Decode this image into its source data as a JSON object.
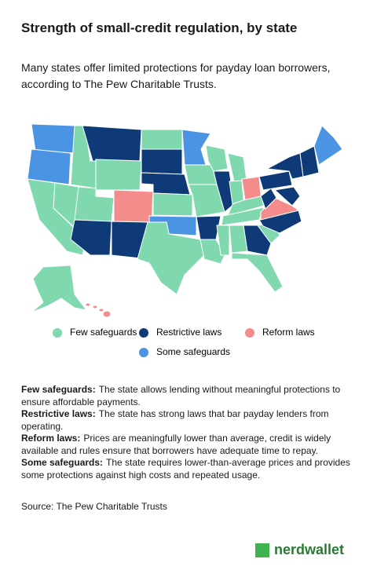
{
  "title": "Strength of small-credit regulation, by state",
  "subtitle": "Many states offer limited protections for payday loan borrowers, according to The Pew Charitable Trusts.",
  "legend": [
    {
      "label": "Few safeguards",
      "color": "#7fd8ae"
    },
    {
      "label": "Restrictive laws",
      "color": "#0e3a78"
    },
    {
      "label": "Reform laws",
      "color": "#f48c8c"
    },
    {
      "label": "Some safeguards",
      "color": "#4b94e3"
    }
  ],
  "notes": [
    {
      "term": "Few safeguards:",
      "text": "The state allows lending without meaningful protections to ensure affordable payments."
    },
    {
      "term": "Restrictive laws:",
      "text": "The state has strong laws that bar payday lenders from operating."
    },
    {
      "term": "Reform laws:",
      "text": "Prices are meaningfully lower than average, credit is widely available and rules ensure that borrowers have adequate time to repay."
    },
    {
      "term": "Some safeguards:",
      "text": "The state requires lower-than-average prices and provides some protections against high costs and repeated usage."
    }
  ],
  "source": "Source: The Pew Charitable Trusts",
  "brand": "nerdwallet"
}
